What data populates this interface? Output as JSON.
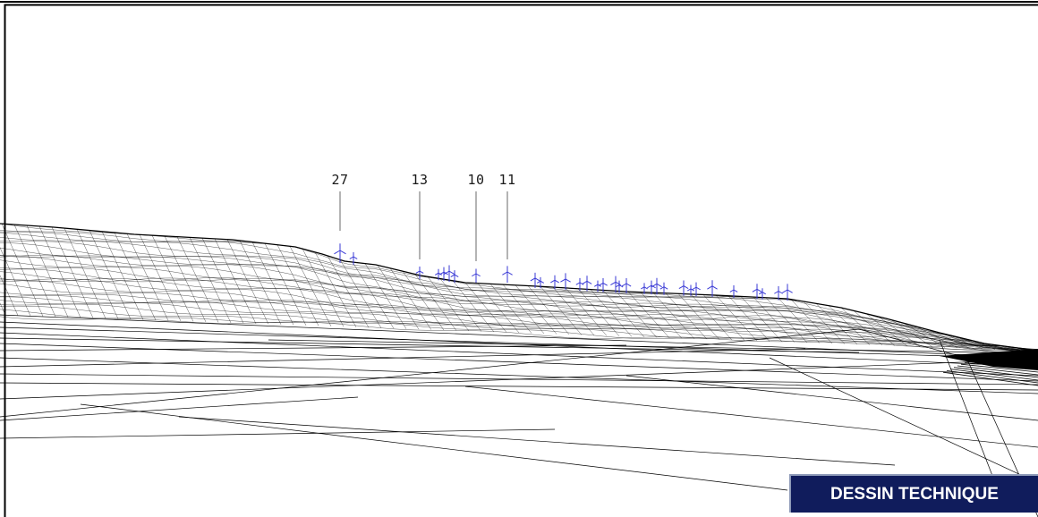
{
  "drawing": {
    "badge_label": "DESSIN TECHNIQUE",
    "callouts": [
      {
        "id": "27",
        "label": "27"
      },
      {
        "id": "13",
        "label": "13"
      },
      {
        "id": "10",
        "label": "10"
      },
      {
        "id": "11",
        "label": "11"
      }
    ],
    "colors": {
      "mesh": "#000000",
      "turbine": "#3a3ad6",
      "leader": "#9a9a9a",
      "badge_bg": "#101c5c",
      "badge_text": "#ffffff"
    }
  }
}
